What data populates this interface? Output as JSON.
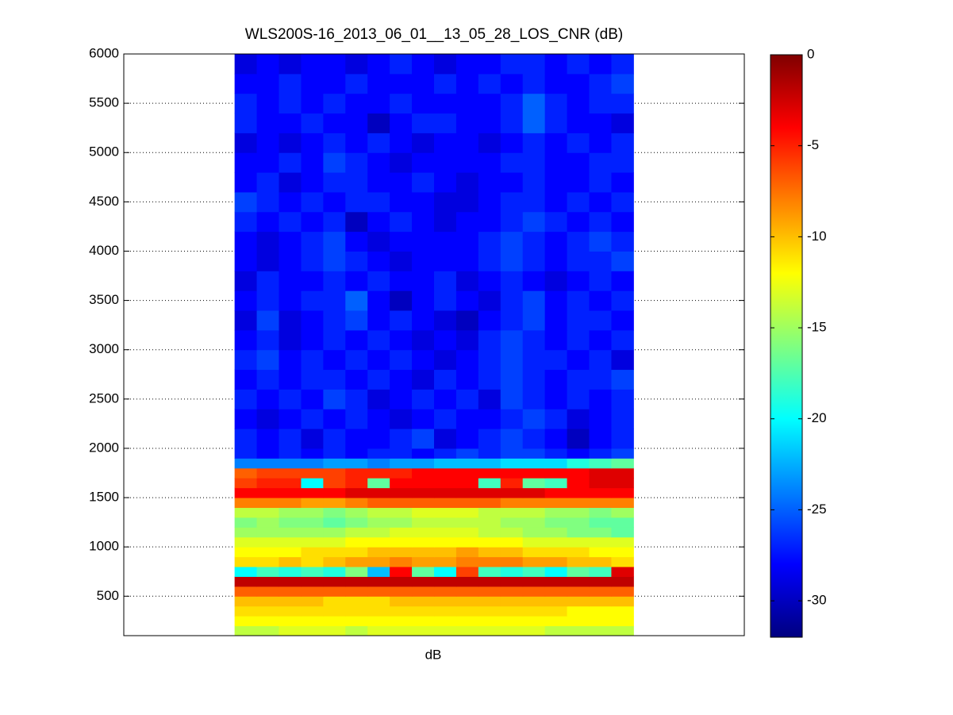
{
  "chart_data": {
    "type": "heatmap",
    "title": "WLS200S-16_2013_06_01__13_05_28_LOS_CNR (dB)",
    "xlabel": "dB",
    "xlim": [
      0,
      28
    ],
    "x_edges": [
      5,
      6,
      7,
      8,
      9,
      10,
      11,
      12,
      13,
      14,
      15,
      16,
      17,
      18,
      19,
      20,
      21,
      22,
      23
    ],
    "ylim": [
      100,
      6000
    ],
    "yticks": [
      500,
      1000,
      1500,
      2000,
      2500,
      3000,
      3500,
      4000,
      4500,
      5000,
      5500,
      6000
    ],
    "grid": true,
    "y_edges": [
      100,
      200,
      300,
      400,
      500,
      600,
      700,
      800,
      900,
      1000,
      1100,
      1200,
      1300,
      1400,
      1500,
      1600,
      1700,
      1800,
      1900,
      2000,
      2200,
      2400,
      2600,
      2800,
      3000,
      3200,
      3400,
      3600,
      3800,
      4000,
      4200,
      4400,
      4600,
      4800,
      5000,
      5200,
      5400,
      5600,
      5800,
      6000
    ],
    "colormap": "jet",
    "clim": [
      -32,
      0
    ],
    "cticks": [
      0,
      -5,
      -10,
      -15,
      -20,
      -25,
      -30
    ],
    "z": [
      [
        -14,
        -14,
        -13,
        -13,
        -13,
        -14,
        -13,
        -13,
        -13,
        -13,
        -13,
        -13,
        -13,
        -13,
        -14,
        -14,
        -14,
        -14
      ],
      [
        -12,
        -12,
        -12,
        -12,
        -12,
        -12,
        -12,
        -12,
        -12,
        -12,
        -12,
        -12,
        -12,
        -12,
        -12,
        -12,
        -12,
        -12
      ],
      [
        -11,
        -11,
        -11,
        -11,
        -11,
        -11,
        -11,
        -11,
        -11,
        -11,
        -11,
        -11,
        -11,
        -11,
        -11,
        -12,
        -12,
        -12
      ],
      [
        -10,
        -10,
        -10,
        -10,
        -11,
        -11,
        -11,
        -10,
        -10,
        -10,
        -10,
        -10,
        -10,
        -10,
        -10,
        -10,
        -10,
        -10
      ],
      [
        -7,
        -7,
        -7,
        -7,
        -7,
        -7,
        -7,
        -7,
        -7,
        -7,
        -7,
        -7,
        -7,
        -7,
        -7,
        -7,
        -7,
        -7
      ],
      [
        -2,
        -2,
        -2,
        -2,
        -2,
        -2,
        -2,
        -2,
        -2,
        -2,
        -2,
        -2,
        -2,
        -2,
        -2,
        -2,
        -2,
        -2
      ],
      [
        -20,
        -18,
        -19,
        -18,
        -19,
        -16,
        -22,
        -4,
        -17,
        -20,
        -6,
        -18,
        -19,
        -18,
        -20,
        -17,
        -18,
        -3
      ],
      [
        -11,
        -11,
        -10,
        -11,
        -10,
        -9,
        -9,
        -8,
        -9,
        -9,
        -8,
        -8,
        -8,
        -9,
        -9,
        -10,
        -10,
        -11
      ],
      [
        -12,
        -12,
        -12,
        -11,
        -11,
        -11,
        -10,
        -10,
        -10,
        -10,
        -9,
        -10,
        -10,
        -11,
        -11,
        -11,
        -12,
        -12
      ],
      [
        -13,
        -13,
        -13,
        -13,
        -13,
        -12,
        -12,
        -12,
        -12,
        -12,
        -12,
        -12,
        -12,
        -13,
        -13,
        -13,
        -13,
        -13
      ],
      [
        -15,
        -15,
        -15,
        -15,
        -15,
        -14,
        -14,
        -13,
        -13,
        -13,
        -13,
        -14,
        -14,
        -15,
        -15,
        -16,
        -16,
        -17
      ],
      [
        -16,
        -15,
        -16,
        -16,
        -17,
        -16,
        -15,
        -15,
        -14,
        -14,
        -14,
        -14,
        -15,
        -15,
        -16,
        -16,
        -17,
        -17
      ],
      [
        -14,
        -14,
        -15,
        -15,
        -16,
        -15,
        -14,
        -14,
        -13,
        -13,
        -13,
        -14,
        -14,
        -14,
        -15,
        -15,
        -16,
        -15
      ],
      [
        -8,
        -8,
        -8,
        -9,
        -9,
        -8,
        -7,
        -7,
        -7,
        -7,
        -7,
        -7,
        -8,
        -8,
        -8,
        -8,
        -8,
        -8
      ],
      [
        -4,
        -4,
        -4,
        -4,
        -4,
        -3,
        -3,
        -3,
        -3,
        -3,
        -3,
        -3,
        -3,
        -3,
        -4,
        -4,
        -4,
        -4
      ],
      [
        -6,
        -5,
        -5,
        -20,
        -6,
        -5,
        -17,
        -4,
        -4,
        -4,
        -4,
        -18,
        -5,
        -17,
        -18,
        -4,
        -3,
        -3
      ],
      [
        -7,
        -6,
        -6,
        -6,
        -6,
        -5,
        -5,
        -5,
        -4,
        -4,
        -4,
        -4,
        -4,
        -4,
        -4,
        -4,
        -3,
        -3
      ],
      [
        -24,
        -24,
        -24,
        -24,
        -23,
        -23,
        -24,
        -23,
        -23,
        -22,
        -22,
        -22,
        -21,
        -21,
        -21,
        -19,
        -18,
        -17
      ],
      [
        -27,
        -28,
        -27,
        -28,
        -27,
        -28,
        -27,
        -27,
        -28,
        -27,
        -26,
        -27,
        -26,
        -26,
        -27,
        -28,
        -27,
        -26
      ],
      [
        -27,
        -28,
        -27,
        -29,
        -27,
        -28,
        -28,
        -27,
        -26,
        -29,
        -28,
        -27,
        -26,
        -27,
        -28,
        -30,
        -28,
        -27
      ],
      [
        -28,
        -29,
        -28,
        -27,
        -28,
        -27,
        -28,
        -29,
        -28,
        -27,
        -28,
        -28,
        -27,
        -26,
        -27,
        -29,
        -28,
        -27
      ],
      [
        -27,
        -28,
        -27,
        -28,
        -26,
        -27,
        -29,
        -28,
        -27,
        -28,
        -27,
        -29,
        -26,
        -27,
        -28,
        -27,
        -28,
        -27
      ],
      [
        -28,
        -27,
        -28,
        -27,
        -27,
        -28,
        -27,
        -28,
        -29,
        -27,
        -28,
        -27,
        -26,
        -27,
        -28,
        -27,
        -27,
        -26
      ],
      [
        -27,
        -26,
        -28,
        -27,
        -28,
        -27,
        -28,
        -27,
        -28,
        -29,
        -28,
        -27,
        -26,
        -27,
        -27,
        -28,
        -27,
        -29
      ],
      [
        -28,
        -27,
        -29,
        -28,
        -27,
        -28,
        -27,
        -28,
        -29,
        -28,
        -29,
        -27,
        -26,
        -27,
        -28,
        -27,
        -28,
        -27
      ],
      [
        -29,
        -26,
        -29,
        -28,
        -27,
        -26,
        -28,
        -27,
        -28,
        -29,
        -30,
        -28,
        -27,
        -26,
        -28,
        -27,
        -27,
        -28
      ],
      [
        -28,
        -27,
        -28,
        -27,
        -27,
        -25,
        -28,
        -30,
        -28,
        -27,
        -28,
        -29,
        -27,
        -26,
        -28,
        -27,
        -28,
        -27
      ],
      [
        -29,
        -27,
        -28,
        -28,
        -27,
        -28,
        -27,
        -28,
        -28,
        -27,
        -29,
        -28,
        -27,
        -28,
        -29,
        -28,
        -27,
        -28
      ],
      [
        -28,
        -29,
        -28,
        -27,
        -26,
        -27,
        -28,
        -29,
        -28,
        -28,
        -28,
        -27,
        -26,
        -27,
        -28,
        -27,
        -27,
        -26
      ],
      [
        -28,
        -29,
        -28,
        -27,
        -26,
        -28,
        -29,
        -28,
        -28,
        -28,
        -28,
        -27,
        -26,
        -27,
        -28,
        -27,
        -26,
        -27
      ],
      [
        -27,
        -28,
        -27,
        -28,
        -27,
        -30,
        -28,
        -27,
        -28,
        -29,
        -28,
        -28,
        -27,
        -26,
        -27,
        -28,
        -27,
        -28
      ],
      [
        -26,
        -27,
        -28,
        -27,
        -28,
        -27,
        -27,
        -28,
        -28,
        -29,
        -29,
        -28,
        -27,
        -27,
        -28,
        -27,
        -28,
        -27
      ],
      [
        -28,
        -27,
        -29,
        -28,
        -27,
        -27,
        -28,
        -28,
        -27,
        -28,
        -29,
        -28,
        -28,
        -27,
        -28,
        -28,
        -27,
        -28
      ],
      [
        -28,
        -28,
        -27,
        -28,
        -26,
        -27,
        -28,
        -29,
        -28,
        -28,
        -28,
        -28,
        -27,
        -27,
        -28,
        -28,
        -27,
        -27
      ],
      [
        -29,
        -28,
        -29,
        -28,
        -27,
        -28,
        -27,
        -28,
        -29,
        -28,
        -28,
        -29,
        -28,
        -27,
        -28,
        -27,
        -28,
        -27
      ],
      [
        -27,
        -28,
        -28,
        -27,
        -28,
        -28,
        -30,
        -28,
        -27,
        -27,
        -28,
        -28,
        -27,
        -25,
        -27,
        -28,
        -28,
        -29
      ],
      [
        -27,
        -28,
        -27,
        -28,
        -27,
        -28,
        -28,
        -27,
        -28,
        -28,
        -28,
        -28,
        -27,
        -25,
        -27,
        -28,
        -27,
        -27
      ],
      [
        -28,
        -28,
        -27,
        -28,
        -28,
        -27,
        -28,
        -28,
        -28,
        -27,
        -28,
        -27,
        -28,
        -27,
        -28,
        -28,
        -27,
        -26
      ],
      [
        -29,
        -28,
        -29,
        -28,
        -28,
        -29,
        -28,
        -27,
        -28,
        -29,
        -28,
        -28,
        -27,
        -27,
        -28,
        -27,
        -28,
        -27
      ]
    ]
  }
}
